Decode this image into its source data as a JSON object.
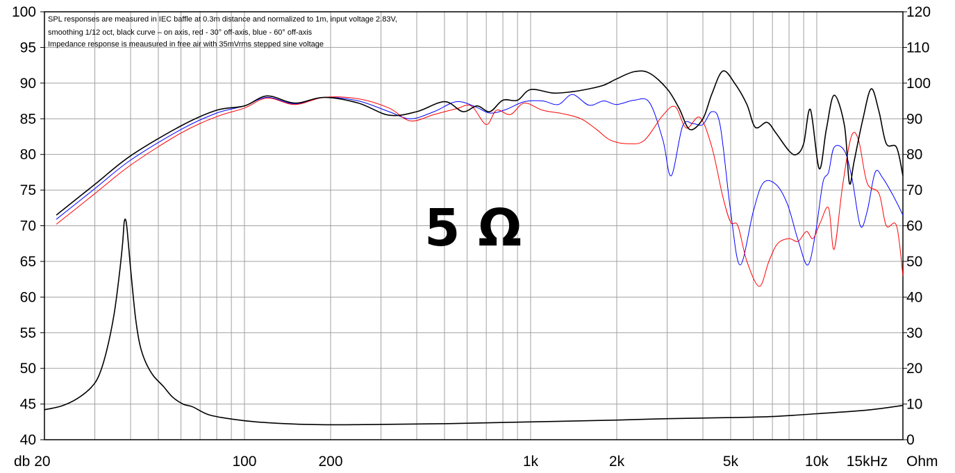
{
  "chart_data": {
    "type": "line",
    "notes": [
      "SPL responses are measured in IEC baffle at  0.3m distance and normalized to 1m, input voltage 2.83V,",
      "smoothing 1/12 oct, black curve – on axis, red - 30° off-axis, blue - 60° off-axis",
      "Impedance response is meausured in free air with 35mVrms stepped sine voltage"
    ],
    "annotation": "5 Ω",
    "x_scale": "log",
    "xlim": [
      20,
      20000
    ],
    "x_tick_labels": [
      {
        "x": 100,
        "label": "100"
      },
      {
        "x": 200,
        "label": "200"
      },
      {
        "x": 1000,
        "label": "1k"
      },
      {
        "x": 2000,
        "label": "2k"
      },
      {
        "x": 5000,
        "label": "5k"
      },
      {
        "x": 10000,
        "label": "10k"
      },
      {
        "x": 15000,
        "label": "15kHz"
      }
    ],
    "x_left_label": "db 20",
    "x_right_label": "Ohm",
    "ylim_left": [
      40,
      100
    ],
    "left_ticks": [
      "40",
      "45",
      "50",
      "55",
      "60",
      "65",
      "70",
      "75",
      "80",
      "85",
      "90",
      "95",
      "100"
    ],
    "ylim_right": [
      0,
      120
    ],
    "right_ticks": [
      "0",
      "10",
      "20",
      "30",
      "40",
      "50",
      "60",
      "70",
      "80",
      "90",
      "100",
      "110",
      "120"
    ],
    "grid": true,
    "colors": {
      "on_axis": "#000000",
      "off30": "#ff0000",
      "off60": "#0000ff",
      "impedance": "#000000",
      "grid": "#a0a0a0"
    },
    "series": [
      {
        "axis": "left",
        "color": "#000000",
        "points": [
          [
            22,
            71.5
          ],
          [
            30,
            75.8
          ],
          [
            40,
            79.8
          ],
          [
            60,
            84
          ],
          [
            80,
            86.2
          ],
          [
            100,
            86.8
          ],
          [
            120,
            88.2
          ],
          [
            150,
            87.2
          ],
          [
            190,
            88
          ],
          [
            250,
            87.2
          ],
          [
            320,
            85.5
          ],
          [
            400,
            86
          ],
          [
            500,
            87.4
          ],
          [
            580,
            86
          ],
          [
            650,
            86.8
          ],
          [
            720,
            86
          ],
          [
            800,
            87.6
          ],
          [
            900,
            87.6
          ],
          [
            1000,
            89.1
          ],
          [
            1200,
            88.6
          ],
          [
            1400,
            88.8
          ],
          [
            1600,
            89.2
          ],
          [
            1800,
            89.7
          ],
          [
            2000,
            90.6
          ],
          [
            2300,
            91.6
          ],
          [
            2600,
            91.4
          ],
          [
            3000,
            89.2
          ],
          [
            3300,
            86.5
          ],
          [
            3600,
            83.5
          ],
          [
            4000,
            85
          ],
          [
            4300,
            88.5
          ],
          [
            4700,
            91.7
          ],
          [
            5200,
            89.8
          ],
          [
            5700,
            87
          ],
          [
            6100,
            83.8
          ],
          [
            6700,
            84.5
          ],
          [
            7200,
            83
          ],
          [
            8000,
            80.5
          ],
          [
            8500,
            80
          ],
          [
            9000,
            81.5
          ],
          [
            9500,
            86.3
          ],
          [
            10200,
            78
          ],
          [
            10800,
            83.5
          ],
          [
            11500,
            88.3
          ],
          [
            12500,
            84
          ],
          [
            13000,
            76
          ],
          [
            13500,
            79
          ],
          [
            14500,
            85
          ],
          [
            15500,
            89.2
          ],
          [
            16500,
            86
          ],
          [
            17500,
            81.5
          ],
          [
            19000,
            81
          ],
          [
            20000,
            77
          ]
        ]
      },
      {
        "axis": "left",
        "color": "#ff0000",
        "points": [
          [
            22,
            70.2
          ],
          [
            30,
            74.5
          ],
          [
            40,
            78.5
          ],
          [
            60,
            83
          ],
          [
            80,
            85.3
          ],
          [
            100,
            86.5
          ],
          [
            120,
            87.9
          ],
          [
            150,
            87
          ],
          [
            190,
            88
          ],
          [
            250,
            87.8
          ],
          [
            320,
            86.5
          ],
          [
            380,
            84.7
          ],
          [
            460,
            85.6
          ],
          [
            550,
            86.4
          ],
          [
            620,
            86.8
          ],
          [
            700,
            84.2
          ],
          [
            760,
            86.2
          ],
          [
            850,
            85.6
          ],
          [
            950,
            87.2
          ],
          [
            1100,
            86.2
          ],
          [
            1300,
            85.7
          ],
          [
            1500,
            85
          ],
          [
            1700,
            83.5
          ],
          [
            1900,
            82
          ],
          [
            2200,
            81.5
          ],
          [
            2500,
            82
          ],
          [
            2900,
            85.5
          ],
          [
            3200,
            86.7
          ],
          [
            3500,
            83.7
          ],
          [
            3900,
            85.2
          ],
          [
            4300,
            81
          ],
          [
            4700,
            74
          ],
          [
            5000,
            70.5
          ],
          [
            5300,
            70
          ],
          [
            5700,
            65
          ],
          [
            6300,
            61.5
          ],
          [
            6800,
            65
          ],
          [
            7300,
            67.5
          ],
          [
            8000,
            68.2
          ],
          [
            8600,
            67.8
          ],
          [
            9200,
            69.2
          ],
          [
            9700,
            68.2
          ],
          [
            10300,
            70.5
          ],
          [
            11000,
            72.5
          ],
          [
            11500,
            66.7
          ],
          [
            12300,
            75.5
          ],
          [
            13200,
            82.5
          ],
          [
            14000,
            82
          ],
          [
            15000,
            76
          ],
          [
            16500,
            74.5
          ],
          [
            17500,
            70
          ],
          [
            19000,
            70
          ],
          [
            20000,
            63
          ]
        ]
      },
      {
        "axis": "left",
        "color": "#0000ff",
        "points": [
          [
            22,
            70.9
          ],
          [
            30,
            75.2
          ],
          [
            40,
            79.2
          ],
          [
            60,
            83.5
          ],
          [
            80,
            85.8
          ],
          [
            100,
            86.8
          ],
          [
            120,
            88
          ],
          [
            150,
            87.1
          ],
          [
            190,
            88
          ],
          [
            250,
            87.5
          ],
          [
            320,
            86
          ],
          [
            380,
            85
          ],
          [
            460,
            86
          ],
          [
            550,
            87.4
          ],
          [
            640,
            86.7
          ],
          [
            720,
            85.8
          ],
          [
            820,
            86.3
          ],
          [
            950,
            87.4
          ],
          [
            1100,
            87.5
          ],
          [
            1250,
            87
          ],
          [
            1400,
            88.4
          ],
          [
            1600,
            86.9
          ],
          [
            1800,
            87.5
          ],
          [
            2000,
            87
          ],
          [
            2300,
            87.6
          ],
          [
            2600,
            87.3
          ],
          [
            2900,
            82
          ],
          [
            3100,
            77
          ],
          [
            3400,
            84
          ],
          [
            3700,
            84.3
          ],
          [
            4000,
            84.2
          ],
          [
            4300,
            86
          ],
          [
            4600,
            84
          ],
          [
            5000,
            72
          ],
          [
            5400,
            64.5
          ],
          [
            6000,
            72
          ],
          [
            6500,
            76
          ],
          [
            7200,
            75.8
          ],
          [
            7900,
            73
          ],
          [
            8600,
            68
          ],
          [
            9300,
            64.5
          ],
          [
            9900,
            69
          ],
          [
            10500,
            76
          ],
          [
            11000,
            77.5
          ],
          [
            11500,
            81
          ],
          [
            12500,
            80.5
          ],
          [
            13300,
            76.5
          ],
          [
            14200,
            70
          ],
          [
            15000,
            72
          ],
          [
            16000,
            77.5
          ],
          [
            17000,
            76.7
          ],
          [
            18500,
            74.2
          ],
          [
            20000,
            71.5
          ]
        ]
      },
      {
        "axis": "right",
        "color": "#000000",
        "points": [
          [
            20,
            8.4
          ],
          [
            23,
            9.5
          ],
          [
            26,
            11.5
          ],
          [
            29,
            14.5
          ],
          [
            31,
            18
          ],
          [
            33,
            25
          ],
          [
            35,
            35
          ],
          [
            36.5,
            46
          ],
          [
            37.5,
            55
          ],
          [
            38,
            61
          ],
          [
            38.5,
            61.5
          ],
          [
            39,
            58
          ],
          [
            40,
            48
          ],
          [
            41.5,
            35
          ],
          [
            43,
            27
          ],
          [
            45,
            22
          ],
          [
            48,
            18
          ],
          [
            52,
            15
          ],
          [
            56,
            12
          ],
          [
            61,
            10
          ],
          [
            66,
            9.2
          ],
          [
            75,
            7
          ],
          [
            90,
            5.8
          ],
          [
            110,
            5
          ],
          [
            150,
            4.4
          ],
          [
            200,
            4.2
          ],
          [
            300,
            4.3
          ],
          [
            500,
            4.5
          ],
          [
            1000,
            5
          ],
          [
            2000,
            5.5
          ],
          [
            3000,
            5.9
          ],
          [
            5000,
            6.2
          ],
          [
            7000,
            6.5
          ],
          [
            10000,
            7.3
          ],
          [
            15000,
            8.3
          ],
          [
            20000,
            9.6
          ]
        ]
      }
    ]
  }
}
